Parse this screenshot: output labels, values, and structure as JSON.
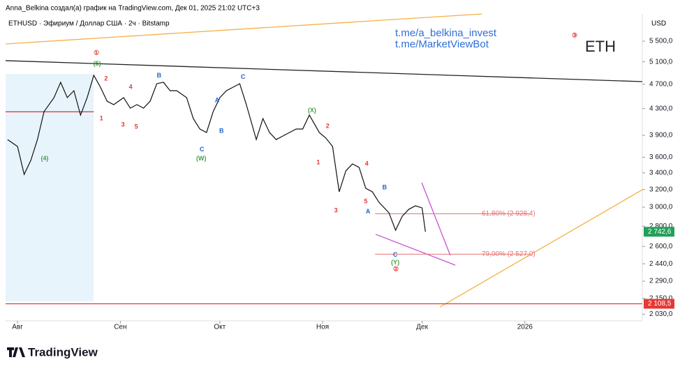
{
  "header": {
    "credit": "Anna_Belkina создал(а) график на TradingView.com, Дек 01, 2025 21:02 UTC+3",
    "logo": "TradingView"
  },
  "chart_data": {
    "type": "line",
    "title": "ETHUSD · Эфириум / Доллар США · 2ч · Bitstamp",
    "currency": "USD",
    "symbol": "ETH",
    "links": [
      "t.me/a_belkina_invest",
      "t.me/MarketViewBot"
    ],
    "log_scale": true,
    "xlim": [
      -3.6,
      188.4
    ],
    "xticks": [
      {
        "value": 0,
        "label": "Авг"
      },
      {
        "value": 31,
        "label": "Сен"
      },
      {
        "value": 61,
        "label": "Окт"
      },
      {
        "value": 92,
        "label": "Ноя"
      },
      {
        "value": 122,
        "label": "Дек"
      },
      {
        "value": 153,
        "label": "2026"
      }
    ],
    "ylim": [
      1981,
      6074
    ],
    "yticks": [
      {
        "value": 5500,
        "label": "5 500,0"
      },
      {
        "value": 5100,
        "label": "5 100,0"
      },
      {
        "value": 4700,
        "label": "4 700,0"
      },
      {
        "value": 4300,
        "label": "4 300,0"
      },
      {
        "value": 3900,
        "label": "3 900,0"
      },
      {
        "value": 3600,
        "label": "3 600,0"
      },
      {
        "value": 3400,
        "label": "3 400,0"
      },
      {
        "value": 3200,
        "label": "3 200,0"
      },
      {
        "value": 3000,
        "label": "3 000,0"
      },
      {
        "value": 2800,
        "label": "2 800,0"
      },
      {
        "value": 2600,
        "label": "2 600,0"
      },
      {
        "value": 2440,
        "label": "2 440,0"
      },
      {
        "value": 2290,
        "label": "2 290,0"
      },
      {
        "value": 2150,
        "label": "2 150,0"
      },
      {
        "value": 2030,
        "label": "2 030,0"
      }
    ],
    "series": [
      {
        "color": "#111111",
        "x": [
          -3,
          0,
          2,
          4,
          6,
          8,
          11,
          13,
          15,
          17,
          19,
          21,
          23,
          25,
          27,
          29,
          32,
          34,
          36,
          38,
          40,
          42,
          44,
          46,
          48,
          51,
          53,
          55,
          57,
          59,
          61,
          63,
          65,
          67,
          69,
          72,
          74,
          76,
          78,
          80,
          82,
          84,
          86,
          88,
          91,
          93,
          95,
          97,
          99,
          101,
          103,
          105,
          107,
          109,
          112,
          114,
          116,
          118,
          120,
          122,
          123
        ],
        "values": [
          3840,
          3744,
          3381,
          3558,
          3840,
          4253,
          4475,
          4733,
          4475,
          4590,
          4199,
          4475,
          4855,
          4649,
          4418,
          4362,
          4475,
          4307,
          4362,
          4307,
          4418,
          4709,
          4733,
          4590,
          4590,
          4475,
          4146,
          3990,
          3940,
          4253,
          4475,
          4590,
          4649,
          4709,
          4362,
          3840,
          4146,
          3940,
          3840,
          3890,
          3940,
          3990,
          3990,
          4199,
          3940,
          3860,
          3744,
          3173,
          3425,
          3513,
          3469,
          3214,
          3173,
          3054,
          2939,
          2758,
          2902,
          2977,
          3015,
          2992,
          2742.6
        ]
      }
    ],
    "levels": [
      {
        "value": 2928.4,
        "label": "61,80% (2 928,4)",
        "color": "#e57373",
        "x": [
          107.8,
          154.7
        ]
      },
      {
        "value": 2527.0,
        "label": "79,00% (2 527,0)",
        "color": "#e57373",
        "x": [
          107.8,
          154.7
        ]
      }
    ],
    "price_labels": [
      {
        "value": 2742.6,
        "label": "2 742,6",
        "color": "#22a05a"
      },
      {
        "value": 2108.5,
        "label": "2 108,5",
        "color": "#e53935"
      }
    ],
    "lines": [
      {
        "x": [
          -3.6,
          188.4
        ],
        "y": [
          5122,
          4745
        ],
        "color": "#222222"
      },
      {
        "x": [
          -3.6,
          140
        ],
        "y": [
          5444,
          6074
        ],
        "color": "#f5b041"
      },
      {
        "x": [
          127.4,
          188.4
        ],
        "y": [
          2084,
          3197
        ],
        "color": "#f5b041"
      },
      {
        "x": [
          121.9,
          130.5
        ],
        "y": [
          3280,
          2516
        ],
        "color": "#c94fd6"
      },
      {
        "x": [
          108,
          132
        ],
        "y": [
          2717,
          2428
        ],
        "color": "#c94fd6"
      },
      {
        "x": [
          -3.6,
          188.4
        ],
        "y": [
          2108.5,
          2108.5
        ],
        "color": "#e53935"
      },
      {
        "x": [
          -3.6,
          23
        ],
        "y": [
          4250,
          4250
        ],
        "color": "#d32f2f"
      }
    ],
    "annotations": [
      {
        "text": "①",
        "x": 23.8,
        "y": 5267,
        "color": "#e53935"
      },
      {
        "text": "(5)",
        "x": 24,
        "y": 5060,
        "color": "#43a047"
      },
      {
        "text": "2",
        "x": 26.7,
        "y": 4790,
        "color": "#e53935"
      },
      {
        "text": "4",
        "x": 34.1,
        "y": 4650,
        "color": "#e53935"
      },
      {
        "text": "1",
        "x": 25.3,
        "y": 4146,
        "color": "#e53935"
      },
      {
        "text": "3",
        "x": 31.8,
        "y": 4050,
        "color": "#e53935"
      },
      {
        "text": "5",
        "x": 35.8,
        "y": 4020,
        "color": "#e53935"
      },
      {
        "text": "B",
        "x": 42.7,
        "y": 4850,
        "color": "#1e63d6"
      },
      {
        "text": "C",
        "x": 68,
        "y": 4820,
        "color": "#1e63d6"
      },
      {
        "text": "A",
        "x": 60.2,
        "y": 4430,
        "color": "#1e63d6"
      },
      {
        "text": "B",
        "x": 61.5,
        "y": 3960,
        "color": "#1e63d6"
      },
      {
        "text": "C",
        "x": 55.6,
        "y": 3700,
        "color": "#1e63d6"
      },
      {
        "text": "(W)",
        "x": 55.4,
        "y": 3580,
        "color": "#43a047"
      },
      {
        "text": "(X)",
        "x": 88.8,
        "y": 4270,
        "color": "#43a047"
      },
      {
        "text": "2",
        "x": 93.5,
        "y": 4030,
        "color": "#e53935"
      },
      {
        "text": "1",
        "x": 90.7,
        "y": 3530,
        "color": "#e53935"
      },
      {
        "text": "4",
        "x": 105.3,
        "y": 3510,
        "color": "#e53935"
      },
      {
        "text": "3",
        "x": 96,
        "y": 2960,
        "color": "#e53935"
      },
      {
        "text": "5",
        "x": 105,
        "y": 3060,
        "color": "#e53935"
      },
      {
        "text": "A",
        "x": 105.7,
        "y": 2950,
        "color": "#1e63d6"
      },
      {
        "text": "B",
        "x": 110.7,
        "y": 3220,
        "color": "#1e63d6"
      },
      {
        "text": "C",
        "x": 113.9,
        "y": 2520,
        "color": "#1e63d6"
      },
      {
        "text": "(Y)",
        "x": 113.9,
        "y": 2450,
        "color": "#43a047"
      },
      {
        "text": "②",
        "x": 114.1,
        "y": 2390,
        "color": "#e53935"
      },
      {
        "text": "③",
        "x": 168,
        "y": 5610,
        "color": "#e53935"
      },
      {
        "text": "(4)",
        "x": 8.2,
        "y": 3580,
        "color": "#43a047"
      }
    ]
  }
}
